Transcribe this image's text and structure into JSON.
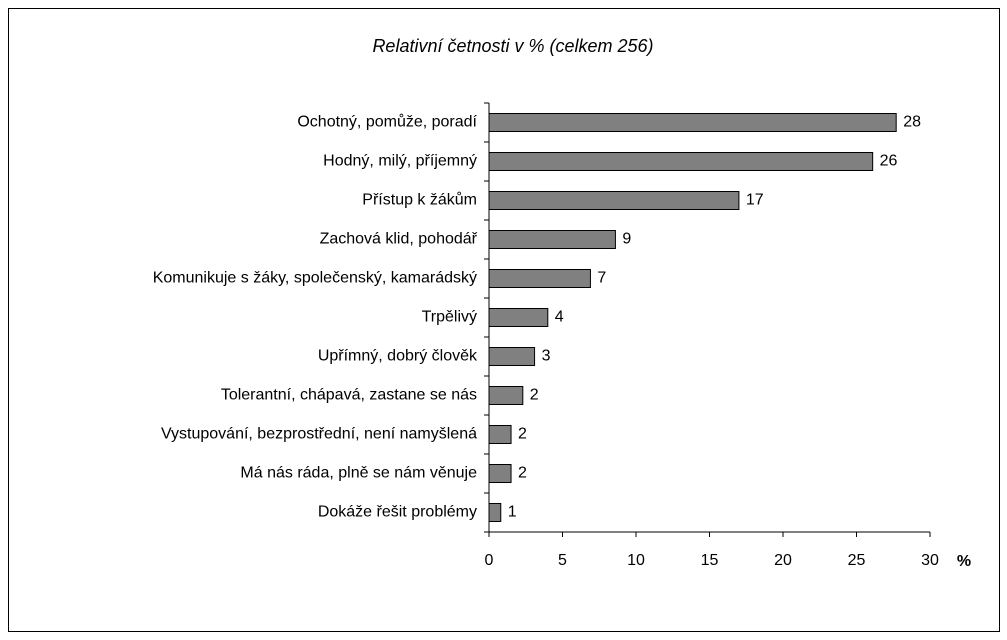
{
  "chart_data": {
    "type": "bar",
    "orientation": "horizontal",
    "title": "Relativní četnosti v % (celkem 256)",
    "xlabel": "%",
    "categories": [
      "Ochotný, pomůže, poradí",
      "Hodný, milý, příjemný",
      "Přístup k žákům",
      "Zachová klid, pohodář",
      "Komunikuje s žáky, společenský, kamarádský",
      "Trpělivý",
      "Upřímný, dobrý člověk",
      "Tolerantní, chápavá, zastane se nás",
      "Vystupování, bezprostřední, není namyšlená",
      "Má nás ráda, plně se nám věnuje",
      "Dokáže řešit problémy"
    ],
    "values": [
      27.7,
      26.1,
      17.0,
      8.6,
      6.9,
      4.0,
      3.1,
      2.3,
      1.5,
      1.5,
      0.8
    ],
    "value_labels": [
      "28",
      "26",
      "17",
      "9",
      "7",
      "4",
      "3",
      "2",
      "2",
      "2",
      "1"
    ],
    "color": "#808080",
    "xlim": [
      0,
      30
    ],
    "xticks": [
      0,
      5,
      10,
      15,
      20,
      25,
      30
    ]
  }
}
